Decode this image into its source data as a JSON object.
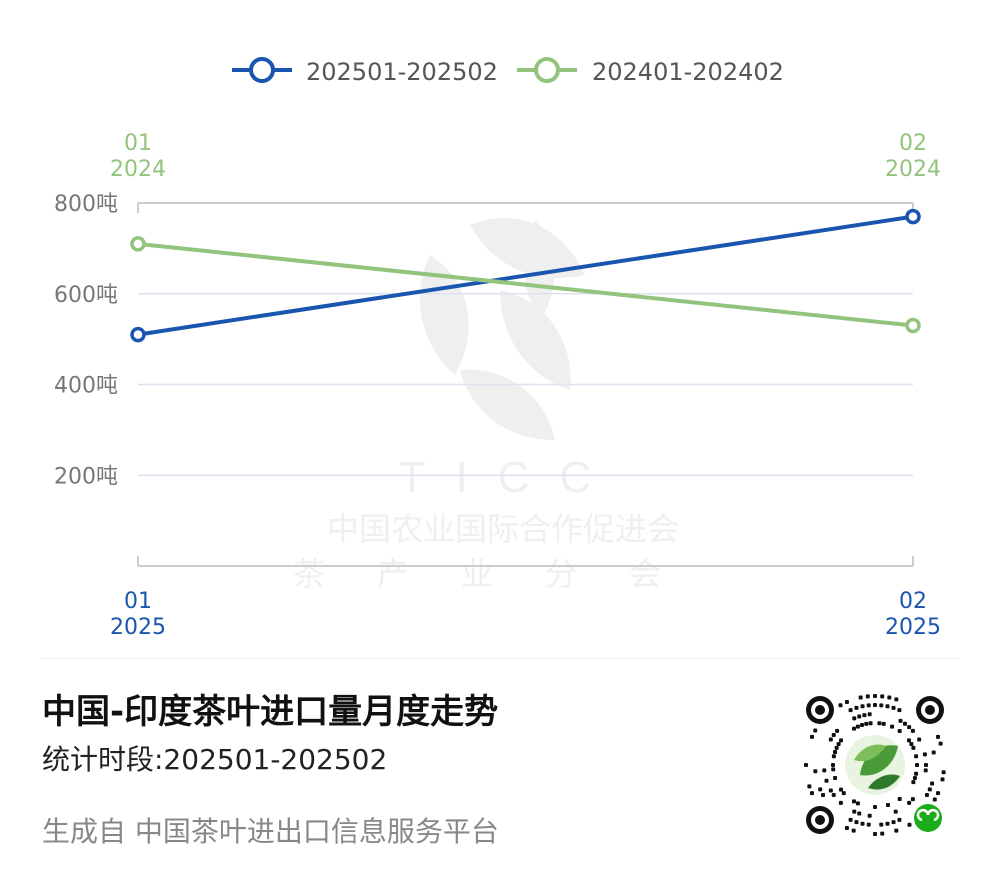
{
  "chart_data": {
    "type": "line",
    "x": [
      "01",
      "02"
    ],
    "series": [
      {
        "name": "202501-202502",
        "year": "2025",
        "values": [
          510,
          770
        ],
        "color": "#1a56b0"
      },
      {
        "name": "202401-202402",
        "year": "2024",
        "values": [
          710,
          530
        ],
        "color": "#93c47d"
      }
    ],
    "y_ticks": [
      {
        "value": 200,
        "label": "200吨"
      },
      {
        "value": 400,
        "label": "400吨"
      },
      {
        "value": 600,
        "label": "600吨"
      },
      {
        "value": 800,
        "label": "800吨"
      }
    ],
    "ylim": [
      0,
      800
    ],
    "grid": true,
    "legend_position": "top-center",
    "title": "中国-印度茶叶进口量月度走势"
  },
  "watermark": {
    "brand": "TICC",
    "org_line1": "中国农业国际合作促进会",
    "org_line2": "茶产业分会"
  },
  "footer": {
    "title": "中国-印度茶叶进口量月度走势",
    "period": "统计时段:202501-202502",
    "source": "生成自 中国茶叶进出口信息服务平台"
  },
  "colors": {
    "series_2025": "#1a56b0",
    "series_2024": "#93c47d",
    "grid": "#dde3ee",
    "tick_text": "#777777"
  },
  "icons": {
    "qr": "mini-program-qr-code-icon"
  }
}
